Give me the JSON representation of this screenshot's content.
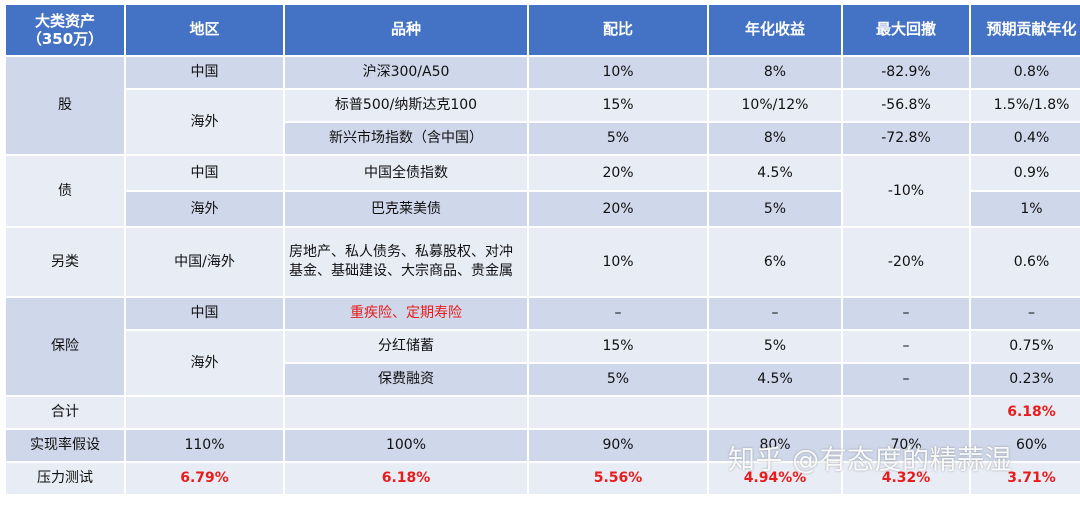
{
  "header": [
    "大类资产\n（350万）",
    "地区",
    "品种",
    "配比",
    "年化收益",
    "最大回撤",
    "预期贡献年化"
  ],
  "stock": {
    "label": "股",
    "r1": {
      "region": "中国",
      "product": "沪深300/A50",
      "ratio": "10%",
      "ret": "8%",
      "dd": "-82.9%",
      "contrib": "0.8%"
    },
    "overseas": "海外",
    "r2": {
      "product": "标普500/纳斯达克100",
      "ratio": "15%",
      "ret": "10%/12%",
      "dd": "-56.8%",
      "contrib": "1.5%/1.8%"
    },
    "r3": {
      "product": "新兴市场指数（含中国）",
      "ratio": "5%",
      "ret": "8%",
      "dd": "-72.8%",
      "contrib": "0.4%"
    }
  },
  "bond": {
    "label": "债",
    "dd": "-10%",
    "r1": {
      "region": "中国",
      "product": "中国全债指数",
      "ratio": "20%",
      "ret": "4.5%",
      "contrib": "0.9%"
    },
    "r2": {
      "region": "海外",
      "product": "巴克莱美债",
      "ratio": "20%",
      "ret": "5%",
      "contrib": "1%"
    }
  },
  "alt": {
    "label": "另类",
    "region": "中国/海外",
    "product": "房地产、私人债务、私募股权、对冲基金、基础建设、大宗商品、贵金属",
    "ratio": "10%",
    "ret": "6%",
    "dd": "-20%",
    "contrib": "0.6%"
  },
  "insurance": {
    "label": "保险",
    "r1": {
      "region": "中国",
      "product": "重疾险、定期寿险",
      "ratio": "–",
      "ret": "–",
      "dd": "–",
      "contrib": "–"
    },
    "overseas": "海外",
    "r2": {
      "product": "分红储蓄",
      "ratio": "15%",
      "ret": "5%",
      "dd": "–",
      "contrib": "0.75%"
    },
    "r3": {
      "product": "保费融资",
      "ratio": "5%",
      "ret": "4.5%",
      "dd": "–",
      "contrib": "0.23%"
    }
  },
  "total": {
    "label": "合计",
    "contrib": "6.18%"
  },
  "assume": {
    "label": "实现率假设",
    "region": "110%",
    "product": "100%",
    "ratio": "90%",
    "ret": "80%",
    "dd": "70%",
    "contrib": "60%"
  },
  "stress": {
    "label": "压力测试",
    "region": "6.79%",
    "product": "6.18%",
    "ratio": "5.56%",
    "ret": "4.94%%",
    "dd": "4.32%",
    "contrib": "3.71%"
  },
  "watermark": "知乎 @有态度的精蒜湿"
}
